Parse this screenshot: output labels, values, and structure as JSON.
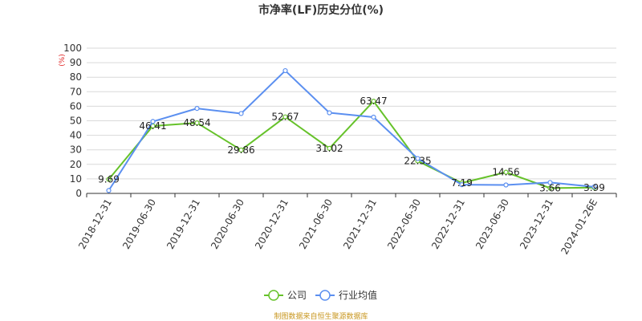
{
  "chart_data": {
    "type": "line",
    "title": "市净率(LF)历史分位(%)",
    "ylabel": "(%)",
    "xlabel": "",
    "ylim": [
      0,
      100
    ],
    "yticks": [
      0,
      10,
      20,
      30,
      40,
      50,
      60,
      70,
      80,
      90,
      100
    ],
    "grid": true,
    "legend_position": "bottom",
    "categories": [
      "2018-12-31",
      "2019-06-30",
      "2019-12-31",
      "2020-06-30",
      "2020-12-31",
      "2021-06-30",
      "2021-12-31",
      "2022-06-30",
      "2022-12-31",
      "2023-06-30",
      "2023-12-31",
      "2024-01-26E"
    ],
    "series": [
      {
        "name": "公司",
        "color": "#66c22a",
        "values": [
          9.69,
          46.41,
          48.54,
          29.86,
          52.67,
          31.02,
          63.47,
          22.35,
          7.19,
          14.56,
          3.66,
          3.99
        ],
        "labels": [
          "9.69",
          "46.41",
          "48.54",
          "29.86",
          "52.67",
          "31.02",
          "63.47",
          "22.35",
          "7.19",
          "14.56",
          "3.66",
          "3.99"
        ]
      },
      {
        "name": "行业均值",
        "color": "#5b8ff0",
        "values": [
          2.0,
          49.5,
          58.5,
          55.0,
          84.5,
          55.5,
          52.5,
          24.0,
          6.0,
          5.8,
          7.5,
          4.5
        ]
      }
    ],
    "source": "制图数据来自恒生聚源数据库"
  },
  "colors": {
    "grid": "#d9d9d9",
    "axis": "#333333",
    "ylabel": "#e02020",
    "source": "#c8961e"
  }
}
